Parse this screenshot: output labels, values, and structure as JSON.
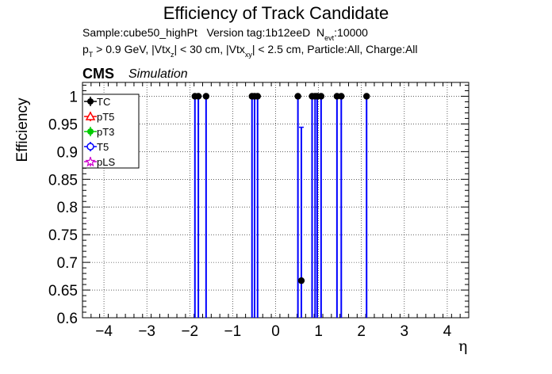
{
  "chart_data": {
    "type": "scatter",
    "title": "Efficiency of Track Candidate",
    "subtitle_line1": {
      "sample": "Sample:cube50_highPt",
      "version": "Version tag:1b12eeD",
      "nevt_prefix": "N",
      "nevt_sub": "evt",
      "nevt_value": ":10000"
    },
    "subtitle_line2": {
      "p": "p",
      "p_sub": "T",
      "p_text": " > 0.9 GeV, |Vtx",
      "vtx_z_sub": "z",
      "vtx_z_text": "| < 30 cm, |Vtx",
      "vtx_xy_sub": "xy",
      "vtx_xy_text": "| < 2.5 cm, Particle:All, Charge:All"
    },
    "cms_label": "CMS",
    "simulation_label": "Simulation",
    "xlabel": "η",
    "ylabel": "Efficiency",
    "xlim": [
      -4.5,
      4.5
    ],
    "ylim": [
      0.6,
      1.025
    ],
    "x_ticks": [
      "−4",
      "−3",
      "−2",
      "−1",
      "0",
      "1",
      "2",
      "3",
      "4"
    ],
    "x_tick_values": [
      -4,
      -3,
      -2,
      -1,
      0,
      1,
      2,
      3,
      4
    ],
    "y_ticks": [
      "0.6",
      "0.65",
      "0.7",
      "0.75",
      "0.8",
      "0.85",
      "0.9",
      "0.95",
      "1"
    ],
    "y_tick_values": [
      0.6,
      0.65,
      0.7,
      0.75,
      0.8,
      0.85,
      0.9,
      0.95,
      1.0
    ],
    "grid": true,
    "legend_position": "top-left",
    "series": [
      {
        "name": "TC",
        "color": "#000000",
        "marker": "filled-circle",
        "points": [
          {
            "x": -1.88,
            "y": 1.0,
            "err_low": 0.4
          },
          {
            "x": -1.8,
            "y": 1.0,
            "err_low": 0.4
          },
          {
            "x": -1.62,
            "y": 1.0,
            "err_low": 0.4
          },
          {
            "x": -0.55,
            "y": 1.0,
            "err_low": 0.4
          },
          {
            "x": -0.49,
            "y": 1.0,
            "err_low": 0.4
          },
          {
            "x": -0.42,
            "y": 1.0,
            "err_low": 0.4
          },
          {
            "x": 0.52,
            "y": 1.0,
            "err_low": 0.4
          },
          {
            "x": 0.6,
            "y": 0.667,
            "err_low": 0.067,
            "err_high": 0.277
          },
          {
            "x": 0.85,
            "y": 1.0,
            "err_low": 0.4
          },
          {
            "x": 0.92,
            "y": 1.0,
            "err_low": 0.4
          },
          {
            "x": 0.97,
            "y": 1.0,
            "err_low": 0.4
          },
          {
            "x": 1.06,
            "y": 1.0,
            "err_low": 0.4
          },
          {
            "x": 1.43,
            "y": 1.0,
            "err_low": 0.4
          },
          {
            "x": 1.53,
            "y": 1.0,
            "err_low": 0.4
          },
          {
            "x": 2.12,
            "y": 1.0,
            "err_low": 0.4
          }
        ]
      },
      {
        "name": "pT5",
        "color": "#ff0000",
        "marker": "open-triangle",
        "points": []
      },
      {
        "name": "pT3",
        "color": "#00cc00",
        "marker": "filled-circle",
        "points": []
      },
      {
        "name": "T5",
        "color": "#0000ff",
        "marker": "open-circle",
        "points": []
      },
      {
        "name": "pLS",
        "color": "#cc00cc",
        "marker": "open-star",
        "points": []
      }
    ],
    "error_bar_color": "#0000ff"
  }
}
